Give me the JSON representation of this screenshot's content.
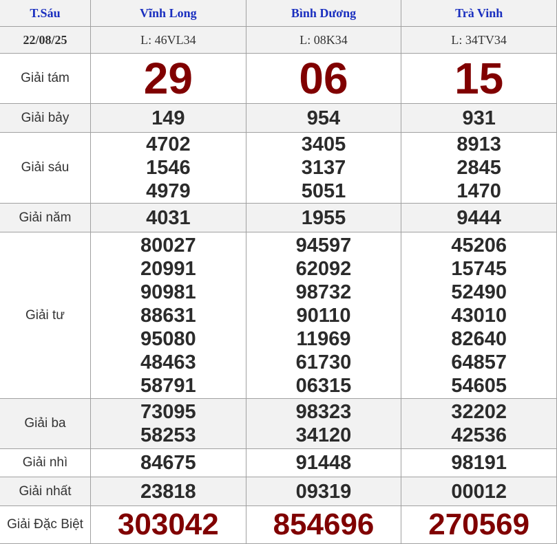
{
  "header": {
    "day": "T.Sáu",
    "date": "22/08/25",
    "provinces": [
      "Vĩnh Long",
      "Bình Dương",
      "Trà Vinh"
    ],
    "codes": [
      "L: 46VL34",
      "L: 08K34",
      "L: 34TV34"
    ]
  },
  "prizes": [
    {
      "label": "Giải tám",
      "values": [
        [
          "29"
        ],
        [
          "06"
        ],
        [
          "15"
        ]
      ]
    },
    {
      "label": "Giải bảy",
      "values": [
        [
          "149"
        ],
        [
          "954"
        ],
        [
          "931"
        ]
      ]
    },
    {
      "label": "Giải sáu",
      "values": [
        [
          "4702",
          "1546",
          "4979"
        ],
        [
          "3405",
          "3137",
          "5051"
        ],
        [
          "8913",
          "2845",
          "1470"
        ]
      ]
    },
    {
      "label": "Giải năm",
      "values": [
        [
          "4031"
        ],
        [
          "1955"
        ],
        [
          "9444"
        ]
      ]
    },
    {
      "label": "Giải tư",
      "values": [
        [
          "80027",
          "20991",
          "90981",
          "88631",
          "95080",
          "48463",
          "58791"
        ],
        [
          "94597",
          "62092",
          "98732",
          "90110",
          "11969",
          "61730",
          "06315"
        ],
        [
          "45206",
          "15745",
          "52490",
          "43010",
          "82640",
          "64857",
          "54605"
        ]
      ]
    },
    {
      "label": "Giải ba",
      "values": [
        [
          "73095",
          "58253"
        ],
        [
          "98323",
          "34120"
        ],
        [
          "32202",
          "42536"
        ]
      ]
    },
    {
      "label": "Giải nhì",
      "values": [
        [
          "84675"
        ],
        [
          "91448"
        ],
        [
          "98191"
        ]
      ]
    },
    {
      "label": "Giải nhất",
      "values": [
        [
          "23818"
        ],
        [
          "09319"
        ],
        [
          "00012"
        ]
      ]
    },
    {
      "label": "Giải Đặc Biệt",
      "values": [
        [
          "303042"
        ],
        [
          "854696"
        ],
        [
          "270569"
        ]
      ]
    }
  ],
  "colors": {
    "header_text": "#1a2fbf",
    "highlight": "#800000",
    "row_alt": "#f2f2f2"
  }
}
